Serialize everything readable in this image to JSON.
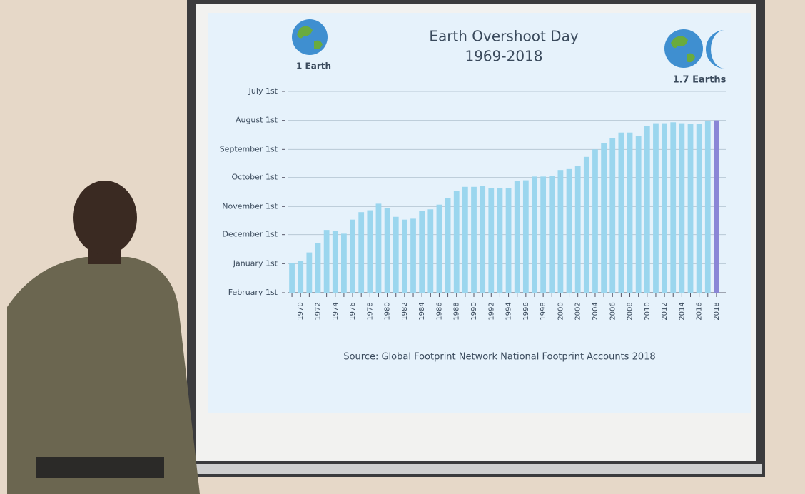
{
  "chart_data": {
    "type": "bar",
    "title": "Earth Overshoot Day",
    "subtitle": "1969-2018",
    "left_icon_label": "1 Earth",
    "right_icon_label": "1.7 Earths",
    "source": "Source: Global Footprint Network National Footprint Accounts 2018",
    "categories": [
      null,
      "1970",
      null,
      "1972",
      null,
      "1974",
      null,
      "1976",
      null,
      "1978",
      null,
      "1980",
      null,
      "1982",
      null,
      "1984",
      null,
      "1986",
      null,
      "1988",
      null,
      "1990",
      null,
      "1992",
      null,
      "1994",
      null,
      "1996",
      null,
      "1998",
      null,
      "2000",
      null,
      "2002",
      null,
      "2004",
      null,
      "2006",
      null,
      "2008",
      null,
      "2010",
      null,
      "2012",
      null,
      "2014",
      null,
      "2016",
      null,
      "2018"
    ],
    "values": [
      365,
      363,
      354,
      344,
      330,
      331,
      334,
      319,
      311,
      309,
      302,
      307,
      316,
      319,
      318,
      310,
      308,
      303,
      296,
      288,
      284,
      284,
      283,
      285,
      285,
      285,
      278,
      277,
      273,
      273,
      272,
      266,
      265,
      262,
      252,
      244,
      237,
      232,
      226,
      226,
      230,
      219,
      216,
      216,
      215,
      216,
      217,
      217,
      214,
      213
    ],
    "color": "#9bd6ee",
    "last_color": "#8a86d6",
    "ylim": [
      397,
      182
    ],
    "yticks": [
      {
        "value": 182,
        "label": "July 1st"
      },
      {
        "value": 213,
        "label": "August 1st"
      },
      {
        "value": 244,
        "label": "September 1st"
      },
      {
        "value": 274,
        "label": "October 1st"
      },
      {
        "value": 305,
        "label": "November 1st"
      },
      {
        "value": 335,
        "label": "December 1st"
      },
      {
        "value": 366,
        "label": "January 1st"
      },
      {
        "value": 397,
        "label": "February 1st"
      }
    ],
    "grid": true
  }
}
